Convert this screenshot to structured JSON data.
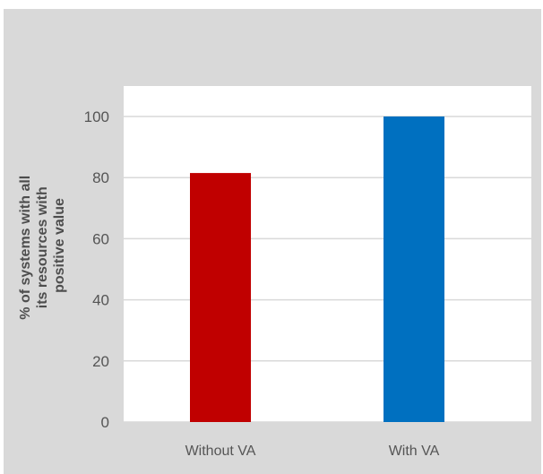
{
  "chart_data": {
    "type": "bar",
    "categories": [
      "Without VA",
      "With VA"
    ],
    "values": [
      81.5,
      100
    ],
    "bar_colors": [
      "#c00000",
      "#0070c0"
    ],
    "ylim": [
      0,
      100
    ],
    "yticks": [
      0,
      20,
      40,
      60,
      80,
      100
    ],
    "ylabel_lines": [
      "% of systems with all",
      "its resources with",
      "positive value"
    ],
    "xlabel": "",
    "title": "",
    "grid": true,
    "legend": "none"
  },
  "colors": {
    "figure_background": "#d9d9d9",
    "plot_background": "#ffffff",
    "gridline": "#d9d9d9",
    "text": "#595959"
  }
}
